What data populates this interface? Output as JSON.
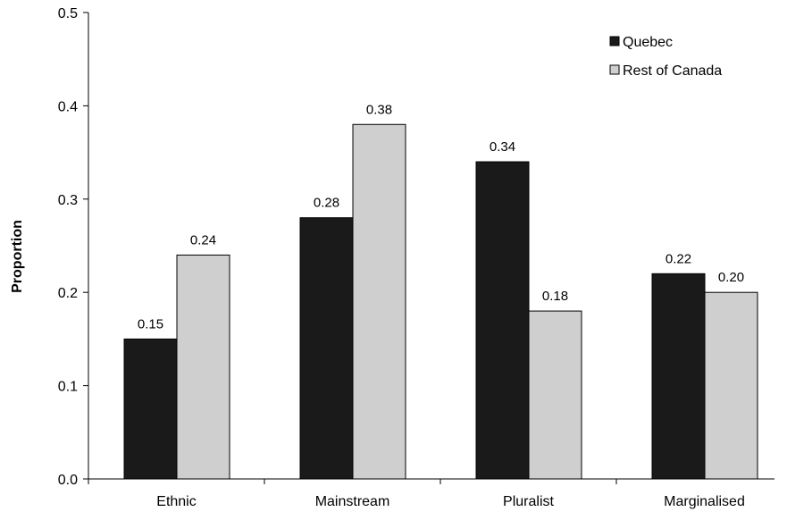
{
  "chart_data": {
    "type": "bar",
    "title": "",
    "xlabel": "",
    "ylabel": "Proportion",
    "ylim": [
      0,
      0.5
    ],
    "yticks": [
      "0.0",
      "0.1",
      "0.2",
      "0.3",
      "0.4",
      "0.5"
    ],
    "categories": [
      "Ethnic",
      "Mainstream",
      "Pluralist",
      "Marginalised"
    ],
    "series": [
      {
        "name": "Quebec",
        "color": "#1a1a1a",
        "values": [
          0.15,
          0.28,
          0.34,
          0.22
        ],
        "labels": [
          "0.15",
          "0.28",
          "0.34",
          "0.22"
        ]
      },
      {
        "name": "Rest of Canada",
        "color": "#cfcfcf",
        "values": [
          0.24,
          0.38,
          0.18,
          0.2
        ],
        "labels": [
          "0.24",
          "0.38",
          "0.18",
          "0.20"
        ]
      }
    ],
    "legend_position": "top-right",
    "grid": false
  }
}
